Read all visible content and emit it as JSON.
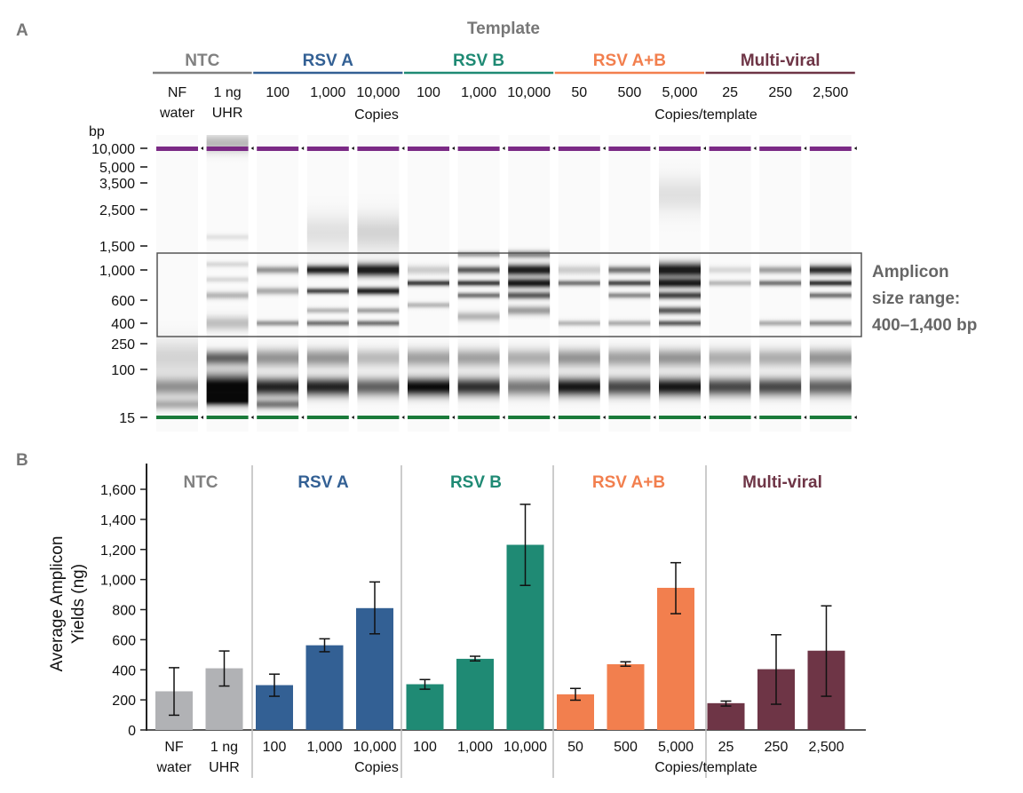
{
  "panel_a_label": "A",
  "panel_b_label": "B",
  "template_title": "Template",
  "colors": {
    "NTC": "#808080",
    "RSV A": "#336094",
    "RSV B": "#1f8a74",
    "RSV A+B": "#f27f4e",
    "Multi-viral": "#6e3546",
    "NTC_bar": "#b1b2b5"
  },
  "groups": [
    {
      "name": "NTC",
      "color": "#808080"
    },
    {
      "name": "RSV A",
      "color": "#336094"
    },
    {
      "name": "RSV B",
      "color": "#1f8a74"
    },
    {
      "name": "RSV A+B",
      "color": "#f27f4e"
    },
    {
      "name": "Multi-viral",
      "color": "#6e3546"
    }
  ],
  "sample_labels": [
    [
      "NF",
      "water"
    ],
    [
      "1 ng",
      "UHR"
    ],
    [
      "100"
    ],
    [
      "1,000"
    ],
    [
      "10,000"
    ],
    [
      "100"
    ],
    [
      "1,000"
    ],
    [
      "10,000"
    ],
    [
      "50"
    ],
    [
      "500"
    ],
    [
      "5,000"
    ],
    [
      "25"
    ],
    [
      "250"
    ],
    [
      "2,500"
    ]
  ],
  "units": {
    "copies": "Copies",
    "copies_template": "Copies/template"
  },
  "gel": {
    "ylabel": "bp",
    "ladder": [
      {
        "bp": 10000,
        "label": "10,000"
      },
      {
        "bp": 5000,
        "label": "5,000"
      },
      {
        "bp": 3500,
        "label": "3,500"
      },
      {
        "bp": 2500,
        "label": "2,500"
      },
      {
        "bp": 1500,
        "label": "1,500"
      },
      {
        "bp": 1000,
        "label": "1,000"
      },
      {
        "bp": 600,
        "label": "600"
      },
      {
        "bp": 400,
        "label": "400"
      },
      {
        "bp": 250,
        "label": "250"
      },
      {
        "bp": 100,
        "label": "100"
      },
      {
        "bp": 15,
        "label": "15"
      }
    ],
    "upper_marker_color": "#7b2a85",
    "lower_marker_color": "#1a7a3a",
    "annotation": [
      "Amplicon",
      "size range:",
      "400–1,400 bp"
    ],
    "annotation_range_bp": [
      400,
      1400
    ],
    "lanes_bands_bp_intensity": [
      [
        [
          50,
          0.4,
          10
        ],
        [
          25,
          0.3,
          6
        ],
        [
          150,
          0.15,
          20
        ]
      ],
      [
        [
          50,
          1,
          14
        ],
        [
          30,
          0.8,
          6
        ],
        [
          150,
          0.6,
          8
        ],
        [
          400,
          0.25,
          8
        ],
        [
          650,
          0.3,
          4
        ],
        [
          850,
          0.15,
          3
        ],
        [
          1100,
          0.15,
          3
        ],
        [
          1700,
          0.1,
          3
        ],
        [
          12000,
          0.25,
          10
        ]
      ],
      [
        [
          50,
          0.85,
          10
        ],
        [
          150,
          0.4,
          10
        ],
        [
          1000,
          0.45,
          4
        ],
        [
          700,
          0.35,
          4
        ],
        [
          400,
          0.45,
          3
        ],
        [
          25,
          0.5,
          5
        ]
      ],
      [
        [
          1000,
          0.95,
          5
        ],
        [
          700,
          0.8,
          3
        ],
        [
          400,
          0.6,
          3
        ],
        [
          500,
          0.3,
          3
        ],
        [
          50,
          0.85,
          10
        ],
        [
          150,
          0.4,
          10
        ],
        [
          1800,
          0.1,
          20
        ]
      ],
      [
        [
          1000,
          1,
          7
        ],
        [
          700,
          0.95,
          4
        ],
        [
          400,
          0.6,
          3
        ],
        [
          500,
          0.4,
          3
        ],
        [
          50,
          0.6,
          10
        ],
        [
          150,
          0.25,
          10
        ],
        [
          1800,
          0.15,
          20
        ]
      ],
      [
        [
          800,
          0.85,
          3
        ],
        [
          550,
          0.3,
          3
        ],
        [
          50,
          0.95,
          10
        ],
        [
          150,
          0.35,
          10
        ],
        [
          1000,
          0.2,
          5
        ]
      ],
      [
        [
          1000,
          0.7,
          4
        ],
        [
          800,
          0.85,
          3
        ],
        [
          650,
          0.6,
          3
        ],
        [
          1300,
          0.4,
          3
        ],
        [
          450,
          0.3,
          5
        ],
        [
          50,
          0.8,
          10
        ],
        [
          150,
          0.35,
          10
        ]
      ],
      [
        [
          1000,
          1,
          6
        ],
        [
          800,
          1,
          5
        ],
        [
          650,
          0.7,
          4
        ],
        [
          1300,
          0.5,
          4
        ],
        [
          500,
          0.4,
          5
        ],
        [
          50,
          0.5,
          10
        ],
        [
          150,
          0.3,
          10
        ]
      ],
      [
        [
          800,
          0.6,
          3
        ],
        [
          400,
          0.3,
          3
        ],
        [
          50,
          0.9,
          10
        ],
        [
          150,
          0.4,
          10
        ],
        [
          1000,
          0.2,
          5
        ]
      ],
      [
        [
          1000,
          0.6,
          4
        ],
        [
          800,
          0.8,
          3
        ],
        [
          650,
          0.5,
          3
        ],
        [
          400,
          0.35,
          3
        ],
        [
          50,
          0.7,
          10
        ],
        [
          150,
          0.35,
          10
        ]
      ],
      [
        [
          1000,
          1,
          8
        ],
        [
          800,
          1,
          5
        ],
        [
          650,
          0.8,
          4
        ],
        [
          500,
          0.7,
          4
        ],
        [
          400,
          0.7,
          3
        ],
        [
          50,
          0.9,
          10
        ],
        [
          150,
          0.4,
          10
        ],
        [
          3000,
          0.1,
          20
        ]
      ],
      [
        [
          800,
          0.3,
          3
        ],
        [
          1000,
          0.15,
          4
        ],
        [
          50,
          0.7,
          10
        ],
        [
          150,
          0.3,
          10
        ]
      ],
      [
        [
          800,
          0.6,
          3
        ],
        [
          1000,
          0.4,
          4
        ],
        [
          400,
          0.35,
          3
        ],
        [
          50,
          0.7,
          10
        ],
        [
          150,
          0.3,
          10
        ]
      ],
      [
        [
          1000,
          0.9,
          5
        ],
        [
          800,
          0.9,
          3
        ],
        [
          650,
          0.6,
          3
        ],
        [
          400,
          0.5,
          3
        ],
        [
          50,
          0.6,
          10
        ],
        [
          150,
          0.4,
          10
        ]
      ]
    ]
  },
  "chart_data": {
    "type": "bar",
    "ylabel": [
      "Average Amplicon",
      "Yields (ng)"
    ],
    "ylim": [
      0,
      1700
    ],
    "yticks": [
      0,
      200,
      400,
      600,
      800,
      1000,
      1200,
      1400,
      1600
    ],
    "ytick_labels": [
      "0",
      "200",
      "400",
      "600",
      "800",
      "1,000",
      "1,200",
      "1,400",
      "1,600"
    ],
    "grid": false,
    "categories": [
      "NF water",
      "1 ng UHR",
      "100",
      "1,000",
      "10,000",
      "100",
      "1,000",
      "10,000",
      "50",
      "500",
      "5,000",
      "25",
      "250",
      "2,500"
    ],
    "group_of_category": [
      "NTC",
      "NTC",
      "RSV A",
      "RSV A",
      "RSV A",
      "RSV B",
      "RSV B",
      "RSV B",
      "RSV A+B",
      "RSV A+B",
      "RSV A+B",
      "Multi-viral",
      "Multi-viral",
      "Multi-viral"
    ],
    "values": [
      257,
      410,
      298,
      563,
      810,
      304,
      473,
      1231,
      237,
      437,
      945,
      178,
      404,
      527
    ],
    "error_low": [
      98,
      292,
      224,
      520,
      639,
      271,
      459,
      961,
      198,
      424,
      773,
      159,
      171,
      224
    ],
    "error_high": [
      414,
      525,
      371,
      606,
      984,
      335,
      490,
      1500,
      276,
      453,
      1112,
      192,
      633,
      825
    ]
  }
}
